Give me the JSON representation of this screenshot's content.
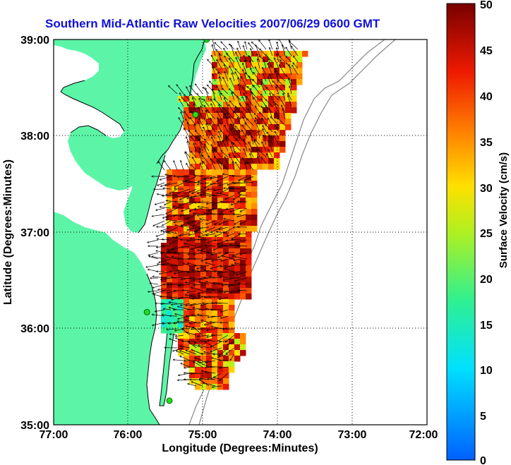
{
  "title": "Southern Mid-Atlantic Raw Velocities 2007/06/29 0600 GMT",
  "x_axis": {
    "label": "Longitude (Degrees:Minutes)",
    "ticks": [
      "77:00",
      "76:00",
      "75:00",
      "74:00",
      "73:00",
      "72:00"
    ]
  },
  "y_axis": {
    "label": "Latitude (Degrees:Minutes)",
    "ticks": [
      "39:00",
      "38:00",
      "37:00",
      "36:00",
      "35:00"
    ]
  },
  "colorbar": {
    "label": "Surface Velocity (cm/s)",
    "ticks": [
      "50",
      "45",
      "40",
      "35",
      "30",
      "25",
      "20",
      "15",
      "10",
      "5",
      "0"
    ],
    "min": 0,
    "max": 50
  },
  "map": {
    "lon_range": [
      -77,
      -72
    ],
    "lat_range": [
      35,
      39
    ],
    "land_color": "#5cf5a8",
    "grid": "dotted",
    "stations": [
      {
        "lon": -74.95,
        "lat": 39.0
      },
      {
        "lon": -75.1,
        "lat": 38.22
      },
      {
        "lon": -75.75,
        "lat": 36.17
      },
      {
        "lon": -75.45,
        "lat": 35.25
      }
    ]
  }
}
